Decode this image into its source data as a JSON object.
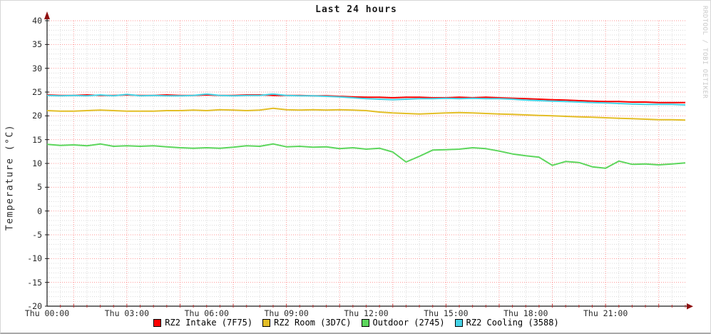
{
  "window": {
    "watermark": "RRDTOOL / TOBI OETIKER"
  },
  "chart_data": {
    "type": "line",
    "title": "Last 24 hours",
    "xlabel": "",
    "ylabel": "Temperature (°C)",
    "ylim": [
      -20,
      40
    ],
    "xlim_hours": [
      0,
      24
    ],
    "grid": "dotted, gray minor (1°C / 30 min), red major (5°C / 2 h)",
    "legend_position": "bottom-center",
    "y_ticks": [
      {
        "value": 40,
        "label": "40"
      },
      {
        "value": 35,
        "label": "35"
      },
      {
        "value": 30,
        "label": "30"
      },
      {
        "value": 25,
        "label": "25"
      },
      {
        "value": 20,
        "label": "20"
      },
      {
        "value": 15,
        "label": "15"
      },
      {
        "value": 10,
        "label": "10"
      },
      {
        "value": 5,
        "label": "5"
      },
      {
        "value": 0,
        "label": "0"
      },
      {
        "value": -5,
        "label": "-5"
      },
      {
        "value": -10,
        "label": "-10"
      },
      {
        "value": -15,
        "label": "-15"
      },
      {
        "value": -20,
        "label": "-20"
      }
    ],
    "x_ticks": [
      {
        "hour": 0,
        "label": "Thu 00:00"
      },
      {
        "hour": 3,
        "label": "Thu 03:00"
      },
      {
        "hour": 6,
        "label": "Thu 06:00"
      },
      {
        "hour": 9,
        "label": "Thu 09:00"
      },
      {
        "hour": 12,
        "label": "Thu 12:00"
      },
      {
        "hour": 15,
        "label": "Thu 15:00"
      },
      {
        "hour": 18,
        "label": "Thu 18:00"
      },
      {
        "hour": 21,
        "label": "Thu 21:00"
      }
    ],
    "x_hours": [
      0,
      0.5,
      1,
      1.5,
      2,
      2.5,
      3,
      3.5,
      4,
      4.5,
      5,
      5.5,
      6,
      6.5,
      7,
      7.5,
      8,
      8.5,
      9,
      9.5,
      10,
      10.5,
      11,
      11.5,
      12,
      12.5,
      13,
      13.5,
      14,
      14.5,
      15,
      15.5,
      16,
      16.5,
      17,
      17.5,
      18,
      18.5,
      19,
      19.5,
      20,
      20.5,
      21,
      21.5,
      22,
      22.5,
      23,
      23.5,
      24
    ],
    "series": [
      {
        "name": "RZ2 Intake (7F75)",
        "color": "#ff0000",
        "values": [
          24.4,
          24.3,
          24.3,
          24.4,
          24.3,
          24.3,
          24.4,
          24.3,
          24.3,
          24.4,
          24.3,
          24.3,
          24.4,
          24.3,
          24.3,
          24.4,
          24.4,
          24.3,
          24.3,
          24.3,
          24.2,
          24.2,
          24.1,
          24.0,
          23.9,
          23.9,
          23.8,
          23.9,
          23.9,
          23.8,
          23.8,
          23.9,
          23.8,
          23.9,
          23.8,
          23.7,
          23.6,
          23.5,
          23.4,
          23.3,
          23.2,
          23.1,
          23.0,
          23.0,
          22.9,
          22.9,
          22.8,
          22.8,
          22.8
        ]
      },
      {
        "name": "RZ2 Room (3D7C)",
        "color": "#e3be27",
        "values": [
          21.1,
          21.0,
          21.0,
          21.1,
          21.2,
          21.1,
          21.0,
          21.0,
          21.0,
          21.1,
          21.1,
          21.2,
          21.1,
          21.3,
          21.2,
          21.1,
          21.2,
          21.6,
          21.3,
          21.2,
          21.3,
          21.2,
          21.3,
          21.2,
          21.1,
          20.8,
          20.6,
          20.5,
          20.4,
          20.5,
          20.6,
          20.7,
          20.6,
          20.5,
          20.4,
          20.3,
          20.2,
          20.1,
          20.0,
          19.9,
          19.8,
          19.7,
          19.6,
          19.5,
          19.4,
          19.3,
          19.2,
          19.2,
          19.1
        ]
      },
      {
        "name": "Outdoor (2745)",
        "color": "#5cd65c",
        "values": [
          14.0,
          13.8,
          13.9,
          13.7,
          14.1,
          13.6,
          13.7,
          13.6,
          13.7,
          13.5,
          13.3,
          13.2,
          13.3,
          13.2,
          13.4,
          13.7,
          13.6,
          14.1,
          13.5,
          13.6,
          13.4,
          13.5,
          13.1,
          13.3,
          13.0,
          13.2,
          12.4,
          10.3,
          11.5,
          12.8,
          12.9,
          13.0,
          13.3,
          13.1,
          12.6,
          12.0,
          11.6,
          11.3,
          9.6,
          10.4,
          10.2,
          9.3,
          9.0,
          10.5,
          9.8,
          9.9,
          9.7,
          9.9,
          10.1
        ]
      },
      {
        "name": "RZ2 Cooling (3588)",
        "color": "#46d3e6",
        "values": [
          24.3,
          24.2,
          24.3,
          24.2,
          24.4,
          24.2,
          24.5,
          24.2,
          24.3,
          24.2,
          24.2,
          24.3,
          24.6,
          24.3,
          24.2,
          24.3,
          24.3,
          24.6,
          24.3,
          24.2,
          24.2,
          24.1,
          24.0,
          23.8,
          23.6,
          23.5,
          23.4,
          23.5,
          23.6,
          23.6,
          23.7,
          23.6,
          23.7,
          23.6,
          23.6,
          23.5,
          23.3,
          23.2,
          23.1,
          23.0,
          22.9,
          22.8,
          22.7,
          22.6,
          22.5,
          22.4,
          22.4,
          22.4,
          22.3
        ]
      }
    ],
    "colors": {
      "grid_major": "#ff0000",
      "grid_minor": "#d8d8d8",
      "axis": "#1a1a1a",
      "arrow": "#8f1010",
      "tick": "#c03434"
    }
  }
}
